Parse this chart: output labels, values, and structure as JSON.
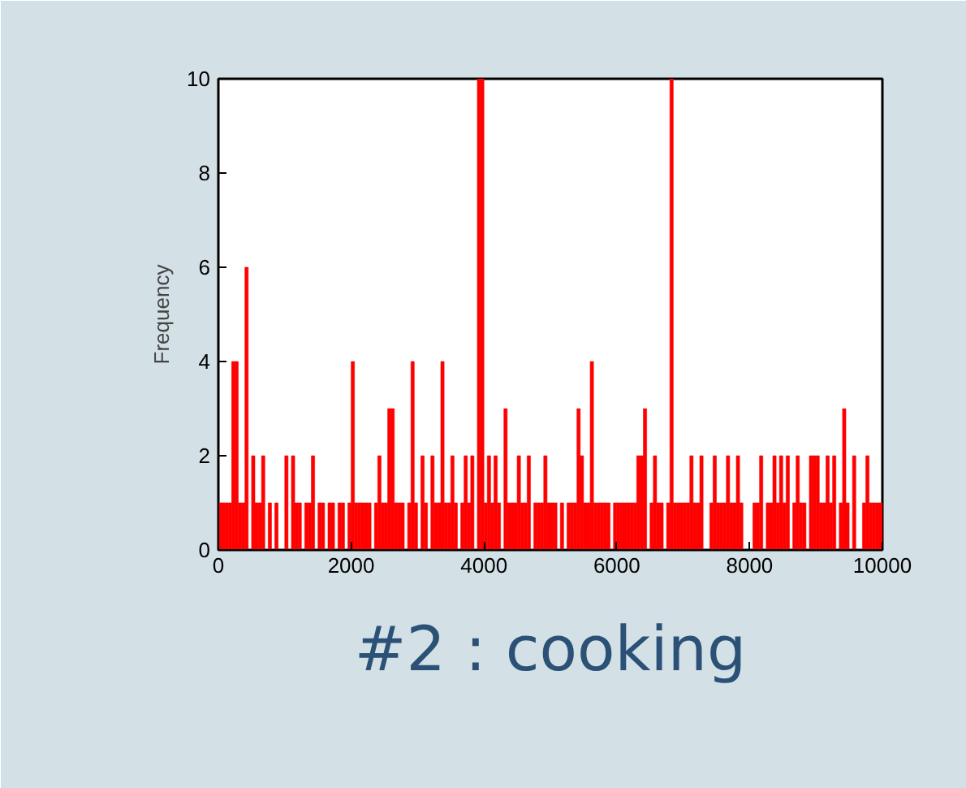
{
  "chart_data": {
    "type": "histogram",
    "title": "#2 : cooking",
    "ylabel": "Frequency",
    "color": "#ff0000",
    "bins": [
      0,
      50,
      100,
      150,
      200,
      250,
      300,
      350,
      400,
      450,
      500,
      550,
      600,
      650,
      700,
      750,
      800,
      850,
      900,
      950,
      1000,
      1050,
      1100,
      1150,
      1200,
      1250,
      1300,
      1350,
      1400,
      1450,
      1500,
      1550,
      1600,
      1650,
      1700,
      1750,
      1800,
      1850,
      1900,
      1950,
      2000,
      2050,
      2100,
      2150,
      2200,
      2250,
      2300,
      2350,
      2400,
      2450,
      2500,
      2550,
      2600,
      2650,
      2700,
      2750,
      2800,
      2850,
      2900,
      2950,
      3000,
      3050,
      3100,
      3150,
      3200,
      3250,
      3300,
      3350,
      3400,
      3450,
      3500,
      3550,
      3600,
      3650,
      3700,
      3750,
      3800,
      3850,
      3900,
      3950,
      4000,
      4050,
      4100,
      4150,
      4200,
      4250,
      4300,
      4350,
      4400,
      4450,
      4500,
      4550,
      4600,
      4650,
      4700,
      4750,
      4800,
      4850,
      4900,
      4950,
      5000,
      5050,
      5100,
      5150,
      5200,
      5250,
      5300,
      5350,
      5400,
      5450,
      5500,
      5550,
      5600,
      5650,
      5700,
      5750,
      5800,
      5850,
      5900,
      5950,
      6000,
      6050,
      6100,
      6150,
      6200,
      6250,
      6300,
      6350,
      6400,
      6450,
      6500,
      6550,
      6600,
      6650,
      6700,
      6750,
      6800,
      6850,
      6900,
      6950,
      7000,
      7050,
      7100,
      7150,
      7200,
      7250,
      7300,
      7350,
      7400,
      7450,
      7500,
      7550,
      7600,
      7650,
      7700,
      7750,
      7800,
      7850,
      7900,
      7950,
      8000,
      8050,
      8100,
      8150,
      8200,
      8250,
      8300,
      8350,
      8400,
      8450,
      8500,
      8550,
      8600,
      8650,
      8700,
      8750,
      8800,
      8850,
      8900,
      8950,
      9000,
      9050,
      9100,
      9150,
      9200,
      9250,
      9300,
      9350,
      9400,
      9450,
      9500,
      9550,
      9600,
      9650,
      9700,
      9750,
      9800,
      9850,
      9900,
      9950,
      10000
    ],
    "values": [
      1,
      1,
      1,
      1,
      4,
      4,
      1,
      1,
      6,
      0,
      2,
      1,
      1,
      2,
      0,
      1,
      0,
      1,
      0,
      0,
      2,
      0,
      2,
      1,
      1,
      0,
      1,
      1,
      2,
      0,
      1,
      1,
      0,
      1,
      1,
      0,
      1,
      1,
      0,
      1,
      4,
      1,
      1,
      1,
      1,
      1,
      0,
      1,
      2,
      1,
      1,
      3,
      3,
      1,
      1,
      1,
      0,
      1,
      4,
      1,
      0,
      2,
      1,
      0,
      2,
      1,
      1,
      4,
      1,
      1,
      2,
      1,
      0,
      1,
      2,
      1,
      2,
      0,
      10,
      10,
      1,
      2,
      1,
      2,
      1,
      0,
      3,
      1,
      1,
      1,
      2,
      1,
      1,
      2,
      0,
      1,
      1,
      1,
      2,
      1,
      1,
      1,
      0,
      1,
      0,
      1,
      1,
      1,
      3,
      2,
      1,
      1,
      4,
      1,
      1,
      1,
      1,
      1,
      0,
      1,
      1,
      1,
      1,
      1,
      1,
      1,
      2,
      2,
      3,
      0,
      1,
      2,
      1,
      1,
      0,
      1,
      10,
      1,
      1,
      1,
      1,
      1,
      2,
      1,
      1,
      2,
      0,
      0,
      1,
      2,
      1,
      1,
      1,
      2,
      1,
      1,
      2,
      1,
      0,
      0,
      0,
      1,
      1,
      2,
      0,
      1,
      1,
      2,
      1,
      2,
      1,
      2,
      0,
      1,
      2,
      1,
      1,
      0,
      2,
      2,
      2,
      1,
      1,
      2,
      1,
      2,
      0,
      1,
      3,
      1,
      0,
      2,
      0,
      0,
      1,
      2,
      1,
      1,
      1,
      1
    ],
    "xlim": [
      0,
      10000
    ],
    "ylim": [
      0,
      10
    ],
    "xticks": [
      0,
      2000,
      4000,
      6000,
      8000,
      10000
    ],
    "yticks": [
      0,
      2,
      4,
      6,
      8,
      10
    ],
    "grid": false
  }
}
